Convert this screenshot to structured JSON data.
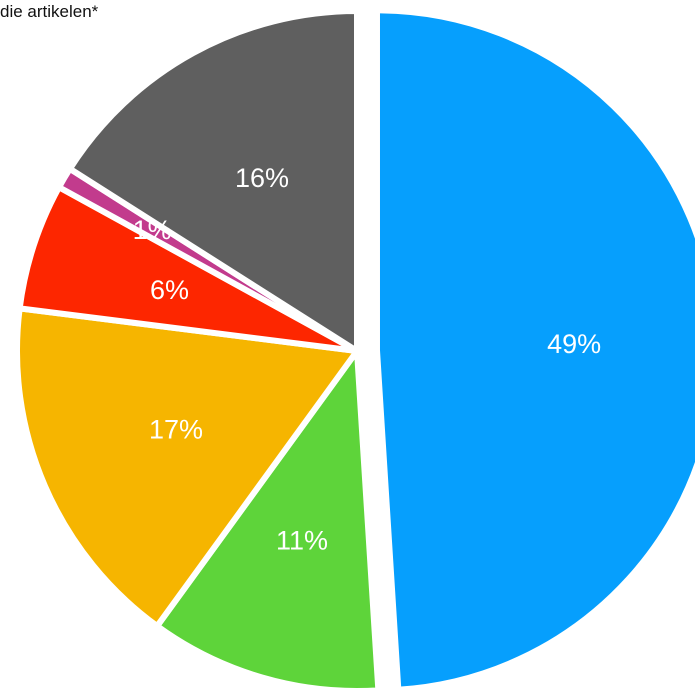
{
  "chart_data": {
    "type": "pie",
    "title": "die artikelen*",
    "start_angle_deg": 0,
    "direction": "clockwise",
    "slices": [
      {
        "label": "49%",
        "value": 49,
        "color": "#069ffd",
        "exploded": true
      },
      {
        "label": "11%",
        "value": 11,
        "color": "#5ed43a",
        "exploded": false
      },
      {
        "label": "17%",
        "value": 17,
        "color": "#f6b500",
        "exploded": false
      },
      {
        "label": "6%",
        "value": 6,
        "color": "#fd2600",
        "exploded": false
      },
      {
        "label": "1%",
        "value": 1,
        "color": "#c23b8d",
        "exploded": false
      },
      {
        "label": "16%",
        "value": 16,
        "color": "#5f5f5f",
        "exploded": false
      }
    ]
  }
}
